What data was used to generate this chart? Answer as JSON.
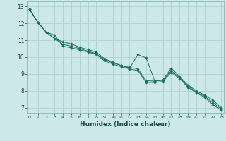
{
  "xlabel": "Humidex (Indice chaleur)",
  "bg_color": "#cce8e8",
  "grid_color": "#aacaca",
  "line_color": "#1a6e62",
  "xlim": [
    -0.3,
    23.3
  ],
  "ylim": [
    6.7,
    13.3
  ],
  "xticks": [
    0,
    1,
    2,
    3,
    4,
    5,
    6,
    7,
    8,
    9,
    10,
    11,
    12,
    13,
    14,
    15,
    16,
    17,
    18,
    19,
    20,
    21,
    22,
    23
  ],
  "yticks": [
    7,
    8,
    9,
    10,
    11,
    12,
    13
  ],
  "x": [
    0,
    1,
    2,
    3,
    4,
    5,
    6,
    7,
    8,
    9,
    10,
    11,
    12,
    13,
    14,
    15,
    16,
    17,
    18,
    19,
    20,
    21,
    22,
    23
  ],
  "series": [
    [
      12.82,
      12.05,
      11.47,
      11.1,
      10.75,
      10.65,
      10.5,
      10.35,
      10.2,
      9.85,
      9.65,
      9.5,
      9.35,
      10.15,
      9.95,
      8.6,
      8.65,
      9.35,
      8.85,
      8.35,
      8.0,
      7.75,
      7.45,
      7.0
    ],
    [
      12.82,
      12.05,
      11.47,
      11.1,
      10.9,
      10.78,
      10.58,
      10.45,
      10.3,
      9.9,
      9.7,
      9.5,
      9.4,
      9.3,
      8.6,
      8.58,
      8.62,
      9.2,
      8.78,
      8.28,
      7.93,
      7.68,
      7.3,
      6.92
    ],
    [
      12.82,
      12.05,
      11.47,
      11.3,
      10.65,
      10.55,
      10.43,
      10.3,
      10.15,
      9.78,
      9.58,
      9.43,
      9.3,
      9.2,
      8.5,
      8.5,
      8.55,
      9.1,
      8.72,
      8.22,
      7.88,
      7.62,
      7.18,
      6.85
    ]
  ]
}
